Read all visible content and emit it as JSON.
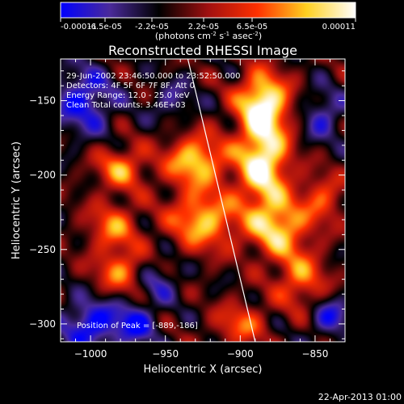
{
  "colorbar": {
    "ticks": [
      "-0.00011",
      "-6.5e-05",
      "-2.2e-05",
      "2.2e-05",
      "6.5e-05",
      "0.00011"
    ],
    "units_prefix": "(photons cm",
    "units_exp1": "-2",
    "units_mid": " s",
    "units_exp2": "-1",
    "units_mid2": " asec",
    "units_exp3": "-2",
    "units_suffix": ")"
  },
  "chart_data": {
    "type": "heatmap",
    "title": "Reconstructed RHESSI Image",
    "xlabel": "Heliocentric X (arcsec)",
    "ylabel": "Heliocentric Y (arcsec)",
    "xlim": [
      -1020,
      -830
    ],
    "ylim": [
      -312,
      -122
    ],
    "x_ticks": [
      -1000,
      -950,
      -900,
      -850
    ],
    "y_ticks": [
      -300,
      -250,
      -200,
      -150
    ],
    "x_tick_labels": [
      "−1000",
      "−950",
      "−900",
      "−850"
    ],
    "y_tick_labels": [
      "−300",
      "−250",
      "−200",
      "−150"
    ],
    "value_range": [
      -0.00011,
      0.00011
    ],
    "colormap": [
      "#0000ff",
      "#4a2a9a",
      "#000000",
      "#a01010",
      "#ff3000",
      "#ffd020",
      "#ffffff"
    ],
    "limb_line": [
      [
        -935,
        -122
      ],
      [
        -890,
        -312
      ]
    ],
    "sources": [
      {
        "x": -885,
        "y": -190,
        "amp": 1.0,
        "sx": 12,
        "sy": 22
      },
      {
        "x": -885,
        "y": -150,
        "amp": 0.9,
        "sx": 12,
        "sy": 14
      },
      {
        "x": -875,
        "y": -235,
        "amp": 0.75,
        "sx": 14,
        "sy": 14
      },
      {
        "x": -930,
        "y": -190,
        "amp": 0.8,
        "sx": 14,
        "sy": 12
      },
      {
        "x": -925,
        "y": -230,
        "amp": 0.75,
        "sx": 16,
        "sy": 14
      },
      {
        "x": -980,
        "y": -195,
        "amp": 0.6,
        "sx": 12,
        "sy": 10
      },
      {
        "x": -985,
        "y": -235,
        "amp": 0.55,
        "sx": 12,
        "sy": 12
      },
      {
        "x": -980,
        "y": -265,
        "amp": 0.55,
        "sx": 12,
        "sy": 10
      },
      {
        "x": -860,
        "y": -270,
        "amp": 0.55,
        "sx": 12,
        "sy": 14
      },
      {
        "x": -845,
        "y": -215,
        "amp": 0.45,
        "sx": 10,
        "sy": 12
      },
      {
        "x": -900,
        "y": -300,
        "amp": 0.5,
        "sx": 12,
        "sy": 10
      },
      {
        "x": -1005,
        "y": -150,
        "amp": -0.55,
        "sx": 14,
        "sy": 16
      },
      {
        "x": -1000,
        "y": -300,
        "amp": -0.6,
        "sx": 14,
        "sy": 12
      },
      {
        "x": -970,
        "y": -300,
        "amp": -0.5,
        "sx": 10,
        "sy": 10
      },
      {
        "x": -945,
        "y": -150,
        "amp": -0.3,
        "sx": 10,
        "sy": 10
      },
      {
        "x": -845,
        "y": -160,
        "amp": -0.4,
        "sx": 10,
        "sy": 12
      },
      {
        "x": -840,
        "y": -295,
        "amp": -0.45,
        "sx": 10,
        "sy": 10
      },
      {
        "x": -955,
        "y": -270,
        "amp": -0.35,
        "sx": 10,
        "sy": 10
      }
    ],
    "annotations": [
      "29-Jun-2002 23:46:50.000 to 23:52:50.000",
      "Detectors: 4F 5F 6F 7F 8F, Att 0",
      "Energy Range: 12.0 - 25.0 keV",
      "Clean    Total counts: 3.46E+03"
    ],
    "peak_label": "Position of Peak = [-889,-186]",
    "grid": false
  },
  "footer": {
    "date": "22-Apr-2013 01:00"
  }
}
